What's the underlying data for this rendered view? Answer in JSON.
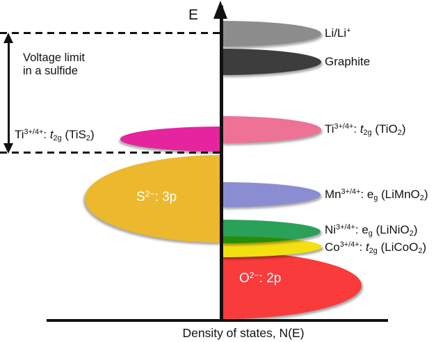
{
  "figure": {
    "energy_axis_label": "E",
    "x_axis_label": "Density of states, N(E)",
    "voltage_limit_line1": "Voltage limit",
    "voltage_limit_line2": "in a sulfide"
  },
  "colors": {
    "axis": "#111111",
    "inner_label_text": "#ffffff"
  },
  "bands": {
    "li": {
      "color": "#8d8d8d",
      "label": [
        {
          "t": "Li/Li",
          "s": "n"
        },
        {
          "t": "+",
          "s": "sup"
        }
      ]
    },
    "graphite": {
      "color": "#3d3d3d",
      "label": [
        {
          "t": "Graphite",
          "s": "n"
        }
      ]
    },
    "tio2": {
      "color": "#ee7196",
      "label": [
        {
          "t": "Ti",
          "s": "n"
        },
        {
          "t": "3+/4+",
          "s": "sup"
        },
        {
          "t": ": ",
          "s": "n"
        },
        {
          "t": "t",
          "s": "i"
        },
        {
          "t": "2g",
          "s": "sub"
        },
        {
          "t": " (TiO",
          "s": "n"
        },
        {
          "t": "2",
          "s": "sub"
        },
        {
          "t": ")",
          "s": "n"
        }
      ]
    },
    "mn": {
      "color": "#8b8dd3",
      "label": [
        {
          "t": "Mn",
          "s": "n"
        },
        {
          "t": "3+/4+",
          "s": "sup"
        },
        {
          "t": ": e",
          "s": "n"
        },
        {
          "t": "g",
          "s": "sub"
        },
        {
          "t": " (LiMnO",
          "s": "n"
        },
        {
          "t": "2",
          "s": "sub"
        },
        {
          "t": ")",
          "s": "n"
        }
      ]
    },
    "ni": {
      "color": "#2aa058",
      "label": [
        {
          "t": "Ni",
          "s": "n"
        },
        {
          "t": "3+/4+",
          "s": "sup"
        },
        {
          "t": ": e",
          "s": "n"
        },
        {
          "t": "g",
          "s": "sub"
        },
        {
          "t": " (LiNiO",
          "s": "n"
        },
        {
          "t": "2",
          "s": "sub"
        },
        {
          "t": ")",
          "s": "n"
        }
      ]
    },
    "co": {
      "color": "#f3e011",
      "label": [
        {
          "t": "Co",
          "s": "n"
        },
        {
          "t": "3+/4+",
          "s": "sup"
        },
        {
          "t": ": ",
          "s": "n"
        },
        {
          "t": "t",
          "s": "i"
        },
        {
          "t": "2g",
          "s": "sub"
        },
        {
          "t": " (LiCoO",
          "s": "n"
        },
        {
          "t": "2",
          "s": "sub"
        },
        {
          "t": ")",
          "s": "n"
        }
      ]
    },
    "o2p": {
      "color": "#f93b3b",
      "label": [
        {
          "t": "O",
          "s": "n"
        },
        {
          "t": "2−",
          "s": "sup"
        },
        {
          "t": ": 2p",
          "s": "n"
        }
      ]
    },
    "tis2": {
      "color": "#e5249e",
      "label": [
        {
          "t": "Ti",
          "s": "n"
        },
        {
          "t": "3+/4+",
          "s": "sup"
        },
        {
          "t": ": ",
          "s": "n"
        },
        {
          "t": "t",
          "s": "i"
        },
        {
          "t": "2g",
          "s": "sub"
        },
        {
          "t": " (TiS",
          "s": "n"
        },
        {
          "t": "2",
          "s": "sub"
        },
        {
          "t": ")",
          "s": "n"
        }
      ]
    },
    "s3p": {
      "color": "#ecb82d",
      "label": [
        {
          "t": "S",
          "s": "n"
        },
        {
          "t": "2−",
          "s": "sup"
        },
        {
          "t": ": 3p",
          "s": "n"
        }
      ]
    }
  }
}
